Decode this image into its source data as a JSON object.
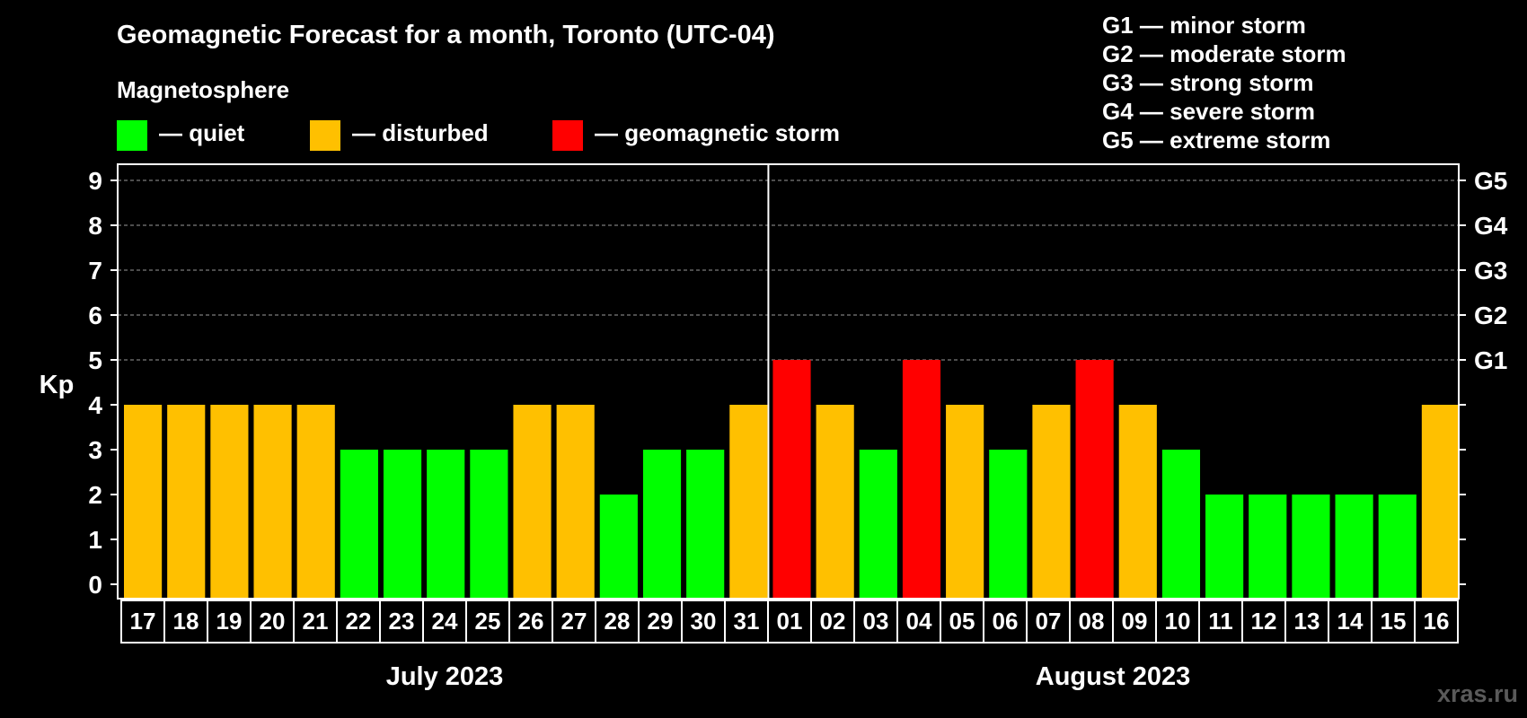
{
  "chart_data": {
    "type": "bar",
    "title": "Geomagnetic Forecast for a month, Toronto (UTC-04)",
    "legend": {
      "heading": "Magnetosphere",
      "items": [
        {
          "label": "— quiet",
          "color": "#00ff00"
        },
        {
          "label": "— disturbed",
          "color": "#ffc000"
        },
        {
          "label": "— geomagnetic storm",
          "color": "#ff0000"
        }
      ]
    },
    "g_scale_legend": [
      "G1 — minor storm",
      "G2 — moderate storm",
      "G3 — strong storm",
      "G4 — severe storm",
      "G5 — extreme storm"
    ],
    "ylabel": "Kp",
    "ylim": [
      0,
      9
    ],
    "yticks": [
      0,
      1,
      2,
      3,
      4,
      5,
      6,
      7,
      8,
      9
    ],
    "right_axis": [
      {
        "kp": 5,
        "label": "G1"
      },
      {
        "kp": 6,
        "label": "G2"
      },
      {
        "kp": 7,
        "label": "G3"
      },
      {
        "kp": 8,
        "label": "G4"
      },
      {
        "kp": 9,
        "label": "G5"
      }
    ],
    "categories": [
      "17",
      "18",
      "19",
      "20",
      "21",
      "22",
      "23",
      "24",
      "25",
      "26",
      "27",
      "28",
      "29",
      "30",
      "31",
      "01",
      "02",
      "03",
      "04",
      "05",
      "06",
      "07",
      "08",
      "09",
      "10",
      "11",
      "12",
      "13",
      "14",
      "15",
      "16"
    ],
    "values": [
      4,
      4,
      4,
      4,
      4,
      3,
      3,
      3,
      3,
      4,
      4,
      2,
      3,
      3,
      4,
      5,
      4,
      3,
      5,
      4,
      3,
      4,
      5,
      4,
      3,
      2,
      2,
      2,
      2,
      2,
      4
    ],
    "months": [
      {
        "label": "July 2023",
        "start_index": 0,
        "end_index": 14
      },
      {
        "label": "August 2023",
        "start_index": 15,
        "end_index": 30
      }
    ],
    "grid": true,
    "level_colors": {
      "quiet": "#00ff00",
      "disturbed": "#ffc000",
      "storm": "#ff0000"
    }
  },
  "watermark": "xras.ru"
}
